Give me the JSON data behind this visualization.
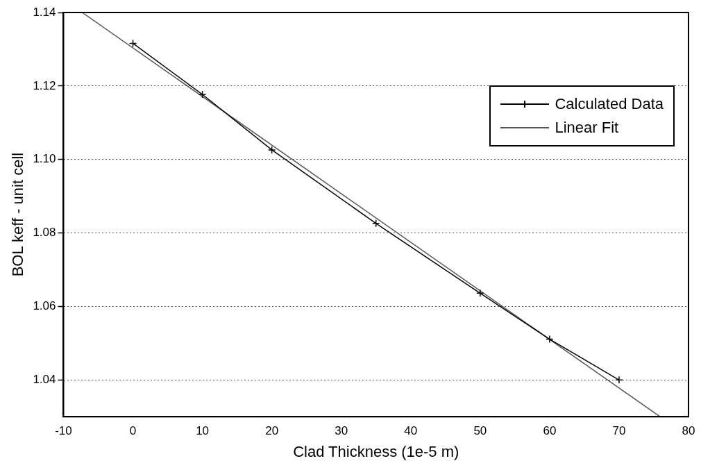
{
  "chart_data": {
    "type": "line",
    "xlabel": "Clad Thickness (1e-5 m)",
    "ylabel": "BOL keff - unit cell",
    "xlim": [
      -10,
      80
    ],
    "xticks": [
      -10,
      0,
      10,
      20,
      30,
      40,
      50,
      60,
      70,
      80
    ],
    "ylim": [
      1.03,
      1.14
    ],
    "yticks": [
      {
        "value": 1.04,
        "label": "1.04"
      },
      {
        "value": 1.06,
        "label": "1.06"
      },
      {
        "value": 1.08,
        "label": "1.08"
      },
      {
        "value": 1.1,
        "label": "1.10"
      },
      {
        "value": 1.12,
        "label": "1.12"
      },
      {
        "value": 1.14,
        "label": "1.14"
      }
    ],
    "grid": "y",
    "legend": "top right",
    "series": [
      {
        "name": "Calculated Data",
        "color": "#000000",
        "marker": "cross",
        "x": [
          0,
          10,
          20,
          35,
          50,
          60,
          70
        ],
        "values": [
          1.1316,
          1.1177,
          1.1026,
          1.0826,
          1.0636,
          1.0511,
          1.04
        ]
      },
      {
        "name": "Linear Fit",
        "color": "#555555",
        "marker": "none",
        "x": [
          -7.3,
          75.9
        ],
        "values": [
          1.14,
          1.03
        ]
      }
    ]
  }
}
